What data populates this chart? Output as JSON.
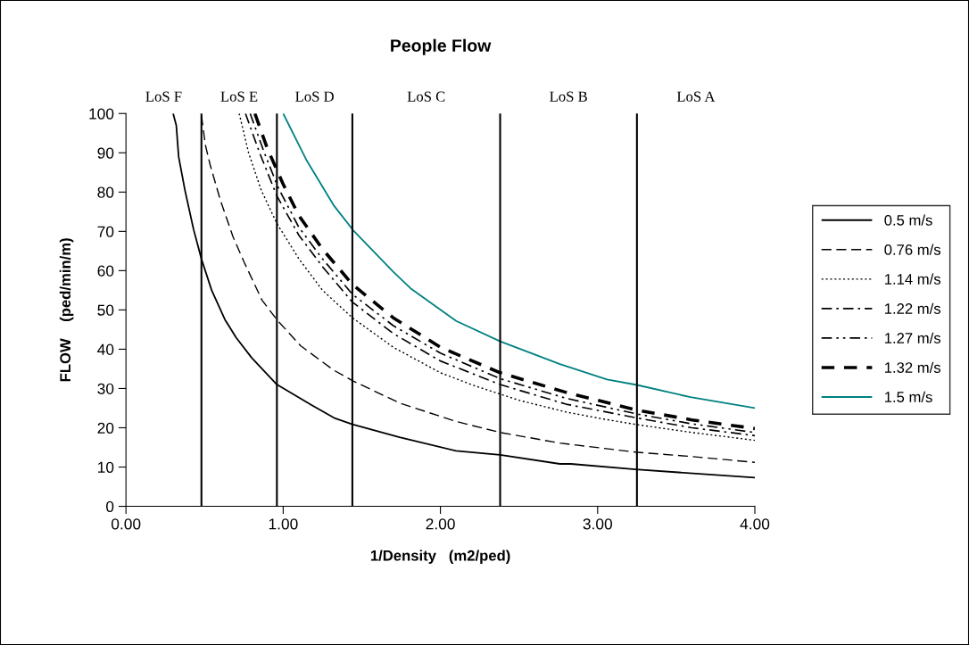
{
  "chart_data": {
    "type": "line",
    "title": "People Flow",
    "xlabel": "1/Density   (m2/ped)",
    "ylabel": "FLOW    (ped/min/m)",
    "xlim": [
      0,
      4
    ],
    "xticks": [
      {
        "value": 0,
        "label": "0.00"
      },
      {
        "value": 1,
        "label": "1.00"
      },
      {
        "value": 2,
        "label": "2.00"
      },
      {
        "value": 3,
        "label": "3.00"
      },
      {
        "value": 4,
        "label": "4.00"
      }
    ],
    "ylim": [
      0,
      100
    ],
    "yticks": [
      0,
      10,
      20,
      30,
      40,
      50,
      60,
      70,
      80,
      90,
      100
    ],
    "grid": false,
    "legend": "right",
    "marker": "none",
    "ref_lines": [
      {
        "axis": "x",
        "value": 0.48,
        "color": "#000000"
      },
      {
        "axis": "x",
        "value": 0.96,
        "color": "#000000"
      },
      {
        "axis": "x",
        "value": 1.44,
        "color": "#000000"
      },
      {
        "axis": "x",
        "value": 2.38,
        "color": "#000000"
      },
      {
        "axis": "x",
        "value": 3.25,
        "color": "#000000"
      }
    ],
    "annotations": [
      "LoS F",
      "LoS E",
      "LoS D",
      "LoS C",
      "LoS B",
      "LoS A"
    ],
    "series": [
      {
        "name": "0.5 m/s",
        "color": "#000000",
        "line_style": "solid",
        "x": [
          0.3,
          0.32,
          0.335,
          0.375,
          0.43,
          0.48,
          0.545,
          0.63,
          0.7,
          0.8,
          0.96,
          1.18,
          1.33,
          1.44,
          1.74,
          2.1,
          2.38,
          2.76,
          2.83,
          3.24,
          4.0
        ],
        "values": [
          100,
          97,
          89,
          80.5,
          70.5,
          63,
          55,
          47.5,
          43,
          37.8,
          31,
          25.8,
          22.4,
          20.9,
          17.6,
          14.1,
          13.1,
          10.8,
          10.8,
          9.4,
          7.3
        ]
      },
      {
        "name": "0.76 m/s",
        "color": "#000000",
        "line_style": "dashed",
        "x": [
          0.48,
          0.505,
          0.535,
          0.6,
          0.68,
          0.75,
          0.865,
          0.96,
          1.11,
          1.32,
          1.44,
          1.74,
          2.1,
          2.38,
          2.76,
          3.24,
          3.59,
          4.0
        ],
        "values": [
          99.5,
          92,
          87,
          78,
          68.7,
          62.3,
          52.5,
          47.5,
          40.9,
          34.7,
          32,
          26.3,
          21.6,
          18.8,
          16.1,
          13.8,
          12.7,
          11.2
        ]
      },
      {
        "name": "1.14 m/s",
        "color": "#000000",
        "line_style": "dotted",
        "x": [
          0.72,
          0.78,
          0.86,
          0.96,
          1.1,
          1.25,
          1.44,
          1.7,
          2.0,
          2.21,
          2.5,
          2.8,
          3.04,
          3.25,
          3.6,
          4.0
        ],
        "values": [
          100,
          90,
          80.5,
          72,
          63,
          55,
          48,
          40.5,
          34,
          30.8,
          27,
          24,
          22.2,
          20.8,
          18.8,
          16.8
        ]
      },
      {
        "name": "1.22 m/s",
        "color": "#000000",
        "line_style": "dashdot",
        "x": [
          0.76,
          0.85,
          0.96,
          1.1,
          1.25,
          1.44,
          1.7,
          2.0,
          2.38,
          2.8,
          3.25,
          3.6,
          4.0
        ],
        "values": [
          100,
          90,
          79,
          69,
          61,
          52,
          44,
          37,
          31,
          26,
          22.5,
          20,
          18
        ]
      },
      {
        "name": "1.27 m/s",
        "color": "#000000",
        "line_style": "dashdotdot",
        "x": [
          0.79,
          0.88,
          0.97,
          1.1,
          1.25,
          1.44,
          1.7,
          2.0,
          2.38,
          2.8,
          3.25,
          3.6,
          4.0
        ],
        "values": [
          100,
          90,
          81,
          71,
          63,
          54,
          46,
          39,
          32.5,
          27.5,
          23.5,
          21,
          18.8
        ]
      },
      {
        "name": "1.32 m/s",
        "color": "#000000",
        "line_style": "heavydashed",
        "x": [
          0.82,
          0.9,
          1.0,
          1.1,
          1.25,
          1.44,
          1.7,
          2.0,
          2.38,
          2.8,
          3.25,
          3.6,
          4.0
        ],
        "values": [
          100,
          91,
          82,
          74,
          65.5,
          56.5,
          48,
          40.5,
          34,
          29,
          24.5,
          22,
          19.8
        ]
      },
      {
        "name": "1.5 m/s",
        "color": "#008080",
        "line_style": "solid",
        "x": [
          1.0,
          1.15,
          1.32,
          1.445,
          1.7,
          1.81,
          2.1,
          2.38,
          2.76,
          3.06,
          3.25,
          3.59,
          4.0
        ],
        "values": [
          100,
          88,
          76.7,
          70.3,
          59.7,
          55.5,
          47.2,
          42,
          36.2,
          32.3,
          30.9,
          27.8,
          25
        ]
      }
    ]
  }
}
